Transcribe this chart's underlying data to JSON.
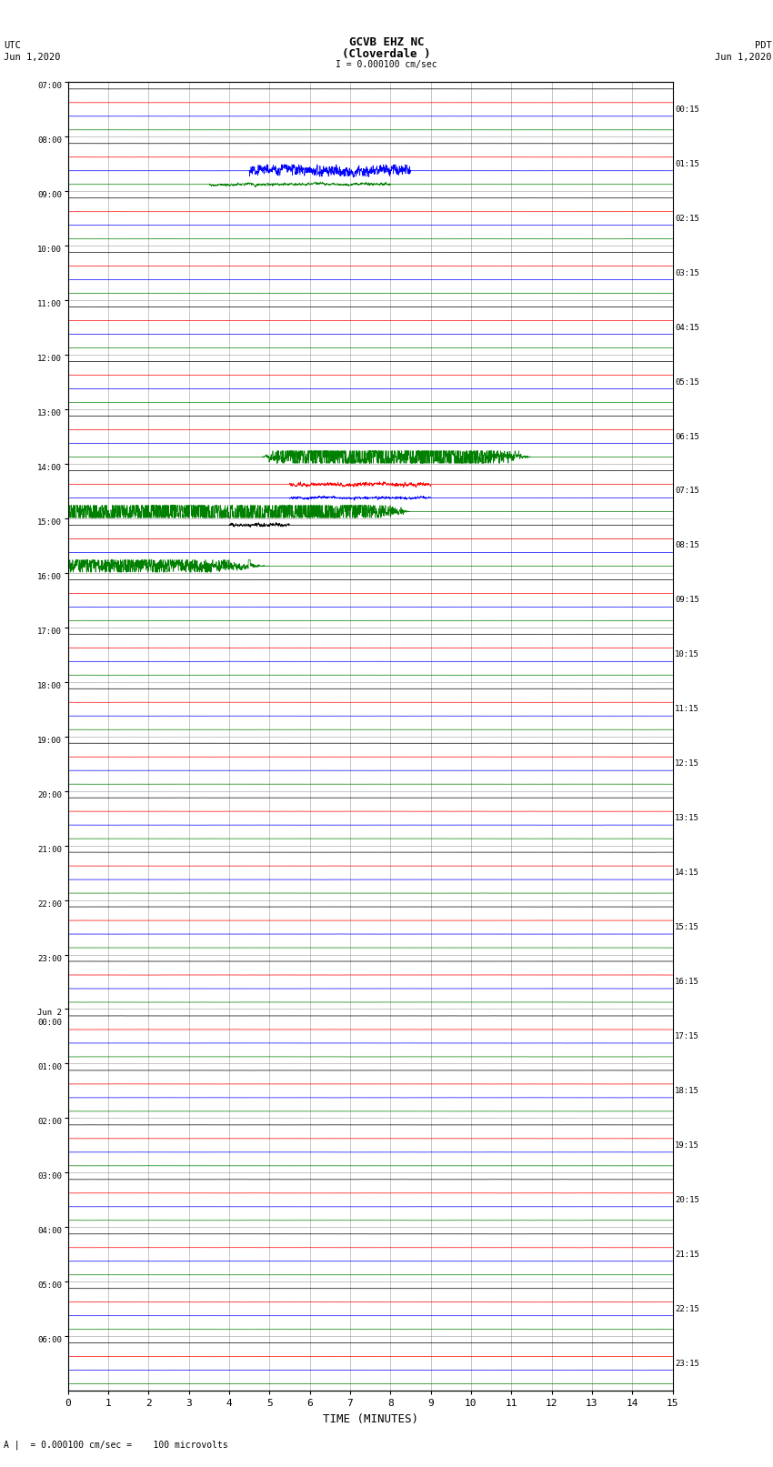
{
  "title_line1": "GCVB EHZ NC",
  "title_line2": "(Cloverdale )",
  "scale_label": "I = 0.000100 cm/sec",
  "utc_label": "UTC\nJun 1,2020",
  "pdt_label": "PDT\nJun 1,2020",
  "xlabel": "TIME (MINUTES)",
  "footer": "A |  = 0.000100 cm/sec =    100 microvolts",
  "left_times": [
    "07:00",
    "08:00",
    "09:00",
    "10:00",
    "11:00",
    "12:00",
    "13:00",
    "14:00",
    "15:00",
    "16:00",
    "17:00",
    "18:00",
    "19:00",
    "20:00",
    "21:00",
    "22:00",
    "23:00",
    "Jun 2\n00:00",
    "01:00",
    "02:00",
    "03:00",
    "04:00",
    "05:00",
    "06:00"
  ],
  "right_times": [
    "00:15",
    "01:15",
    "02:15",
    "03:15",
    "04:15",
    "05:15",
    "06:15",
    "07:15",
    "08:15",
    "09:15",
    "10:15",
    "11:15",
    "12:15",
    "13:15",
    "14:15",
    "15:15",
    "16:15",
    "17:15",
    "18:15",
    "19:15",
    "20:15",
    "21:15",
    "22:15",
    "23:15"
  ],
  "n_rows": 24,
  "n_traces": 4,
  "colors": [
    "black",
    "red",
    "blue",
    "green"
  ],
  "noise_scale": [
    0.018,
    0.022,
    0.02,
    0.018
  ],
  "xlim": [
    0,
    15
  ],
  "bg_color": "white",
  "grid_color": "#999999"
}
